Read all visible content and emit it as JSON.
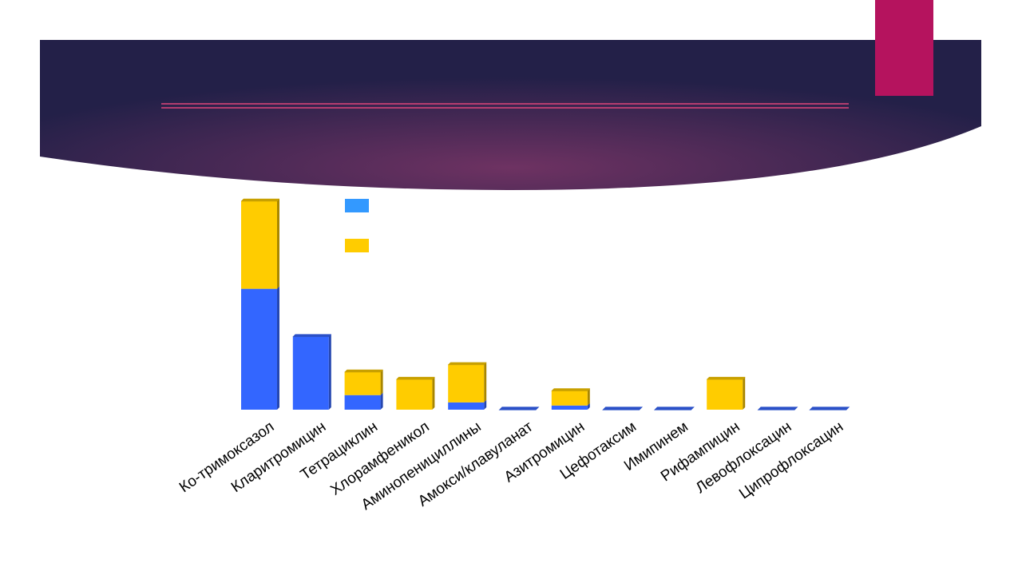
{
  "colors": {
    "banner_center": "#6e3262",
    "banner_edge": "#232048",
    "title_rule": "#e0457a",
    "accent_block": "#b5135e",
    "series_blue": "#3366ff",
    "series_blue_top": "#2a50c8",
    "series_blue_side": "#2547b0",
    "series_yellow": "#ffcc00",
    "series_yellow_top": "#c8a000",
    "series_yellow_side": "#a88600",
    "legend_blue": "#3399ff",
    "legend_yellow": "#ffcc00"
  },
  "chart_data": {
    "type": "bar",
    "stacked": true,
    "style": "3d",
    "title": "",
    "xlabel": "",
    "ylabel": "",
    "ylim": [
      0,
      100
    ],
    "categories": [
      "Ко-тримоксазол",
      "Кларитромицин",
      "Тетрациклин",
      "Хлорамфеникол",
      "Аминопенициллины",
      "Амокси/клавуланат",
      "Азитромицин",
      "Цефотаксим",
      "Имипинем",
      "Рифампицин",
      "Левофлоксацин",
      "Ципрофлоксацин"
    ],
    "series": [
      {
        "values": [
          58,
          35,
          7,
          0,
          3.5,
          0,
          2,
          0,
          0,
          0,
          0,
          0
        ]
      },
      {
        "values": [
          42,
          0,
          11,
          14.5,
          18,
          0,
          7,
          0,
          0,
          14.5,
          0,
          0
        ]
      }
    ],
    "legend": {
      "placement": "top-left"
    },
    "grid": false
  }
}
